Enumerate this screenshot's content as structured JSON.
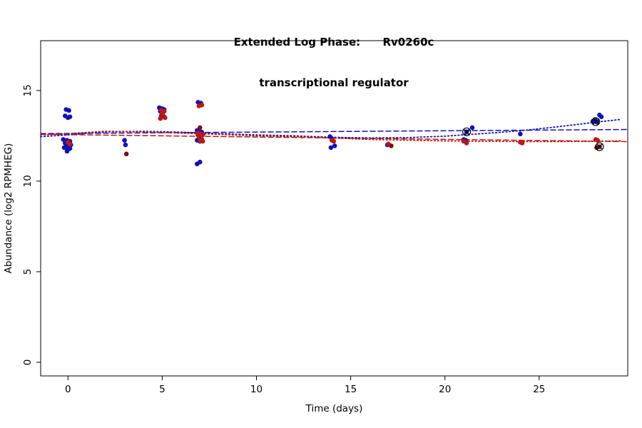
{
  "chart_data": {
    "type": "scatter",
    "title_line1": "Extended Log Phase:      Rv0260c",
    "title_line2": "transcriptional regulator",
    "xlabel": "Time  (days)",
    "ylabel": "Abundance  (log2 RPMHEG)",
    "xlim": [
      -1.45,
      29.7
    ],
    "ylim": [
      -0.75,
      17.75
    ],
    "xticks": [
      0,
      5,
      10,
      15,
      20,
      25
    ],
    "yticks": [
      0,
      5,
      10,
      15
    ],
    "grid": false,
    "legend": "none",
    "colors": {
      "blue": "#1212bb",
      "red": "#c01810",
      "dark_red": "#7a1010",
      "marker_outline": "#000000"
    },
    "series": [
      {
        "name": "condition-blue",
        "color": "#1212bb",
        "points": [
          [
            -0.1,
            13.95
          ],
          [
            0.05,
            13.9
          ],
          [
            -0.15,
            13.6
          ],
          [
            0.1,
            13.55
          ],
          [
            0.0,
            13.5
          ],
          [
            -0.25,
            12.3
          ],
          [
            -0.05,
            12.25
          ],
          [
            0.1,
            12.2
          ],
          [
            -0.15,
            12.1
          ],
          [
            0.0,
            12.05
          ],
          [
            0.15,
            12.0
          ],
          [
            -0.1,
            11.95
          ],
          [
            0.05,
            11.9
          ],
          [
            -0.2,
            11.85
          ],
          [
            0.1,
            11.8
          ],
          [
            0.0,
            11.75
          ],
          [
            -0.05,
            11.65
          ],
          [
            3.0,
            12.25
          ],
          [
            3.05,
            12.0
          ],
          [
            4.85,
            14.05
          ],
          [
            5.0,
            14.0
          ],
          [
            5.1,
            13.95
          ],
          [
            4.9,
            13.85
          ],
          [
            5.05,
            13.8
          ],
          [
            4.95,
            13.6
          ],
          [
            5.1,
            13.55
          ],
          [
            6.9,
            14.35
          ],
          [
            7.05,
            14.3
          ],
          [
            6.85,
            12.8
          ],
          [
            7.0,
            12.75
          ],
          [
            7.1,
            12.7
          ],
          [
            6.9,
            12.55
          ],
          [
            7.05,
            12.5
          ],
          [
            6.95,
            12.35
          ],
          [
            7.1,
            12.3
          ],
          [
            6.85,
            12.25
          ],
          [
            7.0,
            12.2
          ],
          [
            7.0,
            11.05
          ],
          [
            6.85,
            10.95
          ],
          [
            13.9,
            12.45
          ],
          [
            14.0,
            12.35
          ],
          [
            13.95,
            11.85
          ],
          [
            14.15,
            11.95
          ],
          [
            16.95,
            12.0
          ],
          [
            21.0,
            12.3
          ],
          [
            21.1,
            12.25
          ],
          [
            21.45,
            12.95
          ],
          [
            24.0,
            12.6
          ],
          [
            27.85,
            13.3
          ],
          [
            27.95,
            13.4
          ],
          [
            28.2,
            13.65
          ],
          [
            28.3,
            13.55
          ],
          [
            28.1,
            13.25
          ]
        ]
      },
      {
        "name": "condition-red",
        "color": "#c01810",
        "points": [
          [
            0.0,
            12.15
          ],
          [
            0.1,
            12.05
          ],
          [
            4.95,
            13.9
          ],
          [
            5.1,
            13.85
          ],
          [
            5.0,
            13.7
          ],
          [
            5.15,
            13.5
          ],
          [
            4.9,
            13.45
          ],
          [
            7.1,
            14.2
          ],
          [
            6.95,
            14.15
          ],
          [
            6.9,
            12.65
          ],
          [
            7.05,
            12.6
          ],
          [
            7.15,
            12.55
          ],
          [
            6.95,
            12.45
          ],
          [
            7.05,
            12.4
          ],
          [
            7.0,
            12.25
          ],
          [
            7.15,
            12.2
          ],
          [
            14.0,
            12.25
          ],
          [
            14.1,
            12.2
          ],
          [
            17.0,
            12.05
          ],
          [
            21.0,
            12.2
          ],
          [
            21.15,
            12.1
          ],
          [
            24.0,
            12.15
          ],
          [
            24.1,
            12.1
          ],
          [
            28.0,
            12.3
          ],
          [
            28.1,
            12.25
          ]
        ]
      },
      {
        "name": "condition-dark-red",
        "color": "#7a1010",
        "points": [
          [
            3.1,
            11.5
          ],
          [
            7.0,
            12.95
          ],
          [
            17.15,
            11.95
          ],
          [
            28.05,
            11.85
          ]
        ]
      }
    ],
    "circled_points": [
      {
        "x": 21.15,
        "y": 12.72,
        "color": "#1212bb"
      },
      {
        "x": 28.0,
        "y": 13.28,
        "color": "#1212bb"
      },
      {
        "x": 28.2,
        "y": 11.9,
        "color": "#7a1010"
      }
    ],
    "lines": [
      {
        "name": "blue-linear-fit",
        "color": "#1212bb",
        "style": "dashed",
        "width": 1.5,
        "points": [
          [
            -1.45,
            12.62
          ],
          [
            29.7,
            12.85
          ]
        ]
      },
      {
        "name": "red-linear-fit",
        "color": "#c01810",
        "style": "dashed",
        "width": 1.5,
        "points": [
          [
            -1.45,
            12.58
          ],
          [
            29.7,
            12.18
          ]
        ]
      },
      {
        "name": "blue-smooth-fit",
        "color": "#1212bb",
        "style": "dotted",
        "width": 1.8,
        "points": [
          [
            -1.45,
            12.45
          ],
          [
            0,
            12.55
          ],
          [
            2,
            12.72
          ],
          [
            4,
            12.75
          ],
          [
            6,
            12.7
          ],
          [
            8,
            12.62
          ],
          [
            10,
            12.55
          ],
          [
            12,
            12.5
          ],
          [
            14,
            12.42
          ],
          [
            16,
            12.38
          ],
          [
            18,
            12.4
          ],
          [
            20,
            12.48
          ],
          [
            22,
            12.62
          ],
          [
            24,
            12.78
          ],
          [
            26,
            13.0
          ],
          [
            28,
            13.25
          ],
          [
            29.3,
            13.4
          ]
        ]
      },
      {
        "name": "red-smooth-fit",
        "color": "#c01810",
        "style": "dotted",
        "width": 1.8,
        "points": [
          [
            -1.45,
            12.55
          ],
          [
            0,
            12.62
          ],
          [
            2,
            12.75
          ],
          [
            4,
            12.72
          ],
          [
            6,
            12.65
          ],
          [
            8,
            12.58
          ],
          [
            10,
            12.5
          ],
          [
            12,
            12.45
          ],
          [
            14,
            12.38
          ],
          [
            16,
            12.3
          ],
          [
            18,
            12.26
          ],
          [
            20,
            12.22
          ],
          [
            22,
            12.2
          ],
          [
            24,
            12.18
          ],
          [
            26,
            12.18
          ],
          [
            28,
            12.2
          ],
          [
            29.3,
            12.22
          ]
        ]
      }
    ]
  }
}
